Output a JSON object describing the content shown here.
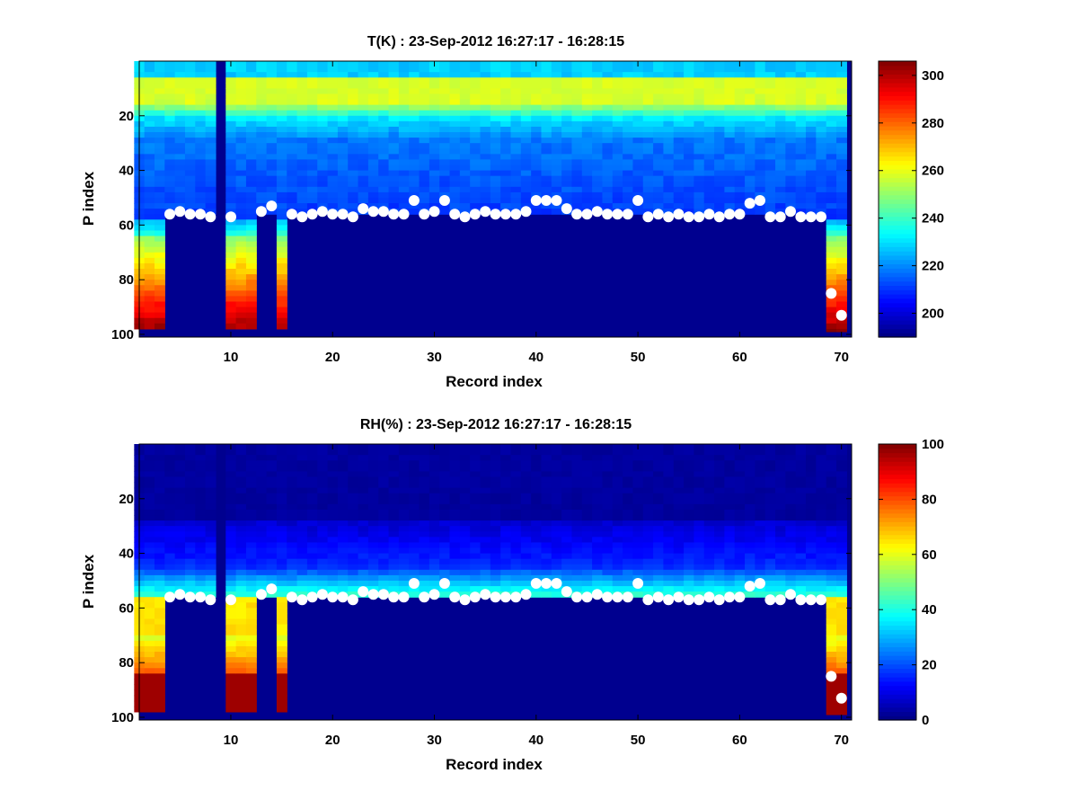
{
  "figure": {
    "background": "#ffffff"
  },
  "chart_data": [
    {
      "type": "heatmap",
      "panel": "top",
      "title": "T(K) : 23-Sep-2012 16:27:17 - 16:28:15",
      "xlabel": "Record index",
      "ylabel": "P index",
      "xlim": [
        1,
        71
      ],
      "ylim": [
        0,
        101
      ],
      "y_reversed": true,
      "xticks": [
        10,
        20,
        30,
        40,
        50,
        60,
        70
      ],
      "yticks": [
        20,
        40,
        60,
        80,
        100
      ],
      "colorbar": {
        "clim": [
          190,
          306
        ],
        "ticks": [
          200,
          220,
          240,
          260,
          280,
          300
        ]
      },
      "colormap": "jet",
      "missing_color": "#00008f",
      "profile": "temperature",
      "full_columns": [
        1,
        2,
        3,
        10,
        11,
        12,
        15,
        69,
        70
      ],
      "dropout_columns": [
        9
      ],
      "column_valid_to": {
        "1": 98,
        "2": 98,
        "3": 98,
        "9": 0,
        "10": 98,
        "11": 98,
        "12": 98,
        "15": 98,
        "69": 99,
        "70": 99
      },
      "default_valid_to": 56,
      "markers": {
        "name": "boundary points",
        "color": "#ffffff",
        "points": [
          [
            4,
            56
          ],
          [
            5,
            55
          ],
          [
            6,
            56
          ],
          [
            7,
            56
          ],
          [
            8,
            57
          ],
          [
            10,
            57
          ],
          [
            13,
            55
          ],
          [
            14,
            53
          ],
          [
            16,
            56
          ],
          [
            17,
            57
          ],
          [
            18,
            56
          ],
          [
            19,
            55
          ],
          [
            20,
            56
          ],
          [
            21,
            56
          ],
          [
            22,
            57
          ],
          [
            23,
            54
          ],
          [
            24,
            55
          ],
          [
            25,
            55
          ],
          [
            26,
            56
          ],
          [
            27,
            56
          ],
          [
            28,
            51
          ],
          [
            29,
            56
          ],
          [
            30,
            55
          ],
          [
            31,
            51
          ],
          [
            32,
            56
          ],
          [
            33,
            57
          ],
          [
            34,
            56
          ],
          [
            35,
            55
          ],
          [
            36,
            56
          ],
          [
            37,
            56
          ],
          [
            38,
            56
          ],
          [
            39,
            55
          ],
          [
            40,
            51
          ],
          [
            41,
            51
          ],
          [
            42,
            51
          ],
          [
            43,
            54
          ],
          [
            44,
            56
          ],
          [
            45,
            56
          ],
          [
            46,
            55
          ],
          [
            47,
            56
          ],
          [
            48,
            56
          ],
          [
            49,
            56
          ],
          [
            50,
            51
          ],
          [
            51,
            57
          ],
          [
            52,
            56
          ],
          [
            53,
            57
          ],
          [
            54,
            56
          ],
          [
            55,
            57
          ],
          [
            56,
            57
          ],
          [
            57,
            56
          ],
          [
            58,
            57
          ],
          [
            59,
            56
          ],
          [
            60,
            56
          ],
          [
            61,
            52
          ],
          [
            62,
            51
          ],
          [
            63,
            57
          ],
          [
            64,
            57
          ],
          [
            65,
            55
          ],
          [
            66,
            57
          ],
          [
            67,
            57
          ],
          [
            68,
            57
          ],
          [
            69,
            85
          ],
          [
            70,
            93
          ]
        ]
      }
    },
    {
      "type": "heatmap",
      "panel": "bottom",
      "title": "RH(%) : 23-Sep-2012 16:27:17 - 16:28:15",
      "xlabel": "Record index",
      "ylabel": "P index",
      "xlim": [
        1,
        71
      ],
      "ylim": [
        0,
        101
      ],
      "y_reversed": true,
      "xticks": [
        10,
        20,
        30,
        40,
        50,
        60,
        70
      ],
      "yticks": [
        20,
        40,
        60,
        80,
        100
      ],
      "colorbar": {
        "clim": [
          0,
          100
        ],
        "ticks": [
          0,
          20,
          40,
          60,
          80,
          100
        ]
      },
      "colormap": "jet",
      "missing_color": "#00008f",
      "profile": "humidity",
      "full_columns": [
        1,
        2,
        3,
        10,
        11,
        12,
        15,
        69,
        70
      ],
      "dropout_columns": [
        9
      ],
      "column_valid_to": {
        "1": 98,
        "2": 98,
        "3": 98,
        "9": 0,
        "10": 98,
        "11": 98,
        "12": 98,
        "15": 98,
        "69": 99,
        "70": 99
      },
      "default_valid_to": 56,
      "markers": {
        "name": "boundary points",
        "color": "#ffffff",
        "points": [
          [
            4,
            56
          ],
          [
            5,
            55
          ],
          [
            6,
            56
          ],
          [
            7,
            56
          ],
          [
            8,
            57
          ],
          [
            10,
            57
          ],
          [
            13,
            55
          ],
          [
            14,
            53
          ],
          [
            16,
            56
          ],
          [
            17,
            57
          ],
          [
            18,
            56
          ],
          [
            19,
            55
          ],
          [
            20,
            56
          ],
          [
            21,
            56
          ],
          [
            22,
            57
          ],
          [
            23,
            54
          ],
          [
            24,
            55
          ],
          [
            25,
            55
          ],
          [
            26,
            56
          ],
          [
            27,
            56
          ],
          [
            28,
            51
          ],
          [
            29,
            56
          ],
          [
            30,
            55
          ],
          [
            31,
            51
          ],
          [
            32,
            56
          ],
          [
            33,
            57
          ],
          [
            34,
            56
          ],
          [
            35,
            55
          ],
          [
            36,
            56
          ],
          [
            37,
            56
          ],
          [
            38,
            56
          ],
          [
            39,
            55
          ],
          [
            40,
            51
          ],
          [
            41,
            51
          ],
          [
            42,
            51
          ],
          [
            43,
            54
          ],
          [
            44,
            56
          ],
          [
            45,
            56
          ],
          [
            46,
            55
          ],
          [
            47,
            56
          ],
          [
            48,
            56
          ],
          [
            49,
            56
          ],
          [
            50,
            51
          ],
          [
            51,
            57
          ],
          [
            52,
            56
          ],
          [
            53,
            57
          ],
          [
            54,
            56
          ],
          [
            55,
            57
          ],
          [
            56,
            57
          ],
          [
            57,
            56
          ],
          [
            58,
            57
          ],
          [
            59,
            56
          ],
          [
            60,
            56
          ],
          [
            61,
            52
          ],
          [
            62,
            51
          ],
          [
            63,
            57
          ],
          [
            64,
            57
          ],
          [
            65,
            55
          ],
          [
            66,
            57
          ],
          [
            67,
            57
          ],
          [
            68,
            57
          ],
          [
            69,
            85
          ],
          [
            70,
            93
          ]
        ]
      }
    }
  ]
}
